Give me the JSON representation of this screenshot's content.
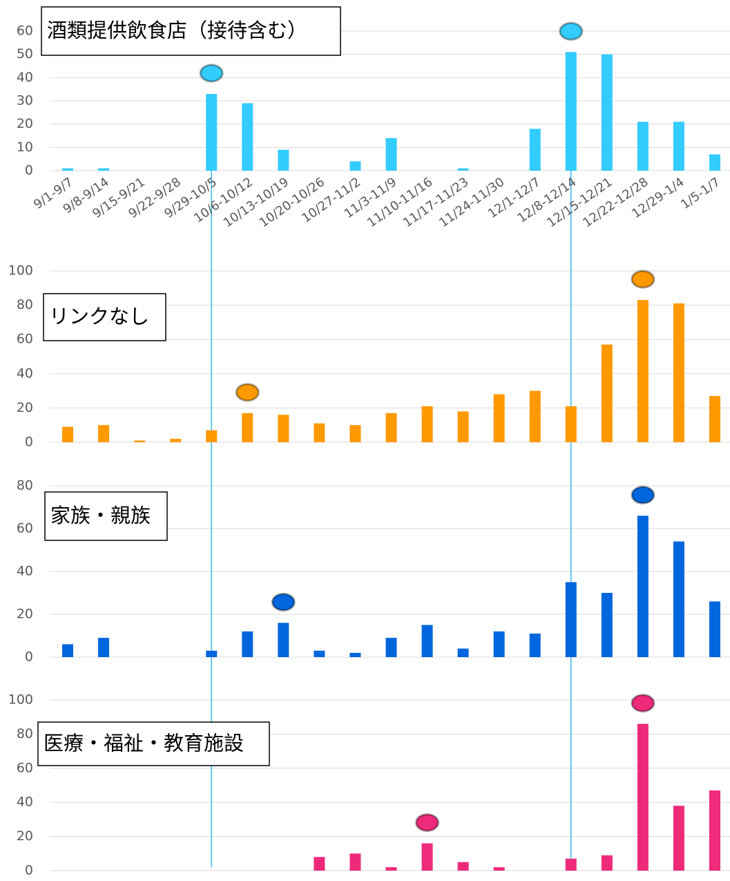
{
  "chart_data": [
    {
      "type": "bar",
      "title": "酒類提供飲食店（接待含む）",
      "categories": [
        "9/1-9/7",
        "9/8-9/14",
        "9/15-9/21",
        "9/22-9/28",
        "9/29-10/5",
        "10/6-10/12",
        "10/13-10/19",
        "10/20-10/26",
        "10/27-11/2",
        "11/3-11/9",
        "11/10-11/16",
        "11/17-11/23",
        "11/24-11/30",
        "12/1-12/7",
        "12/8-12/14",
        "12/15-12/21",
        "12/22-12/28",
        "12/29-1/4",
        "1/5-1/7"
      ],
      "values": [
        1,
        1,
        0,
        0,
        33,
        29,
        9,
        0,
        4,
        14,
        0,
        1,
        0,
        18,
        51,
        50,
        21,
        21,
        7
      ],
      "color": "#33ccff",
      "ylim": [
        0,
        60
      ],
      "yticks": [
        0,
        10,
        20,
        30,
        40,
        50,
        60
      ],
      "grid": true,
      "highlights": [
        4,
        14
      ]
    },
    {
      "type": "bar",
      "title": "リンクなし",
      "values": [
        9,
        10,
        1,
        2,
        7,
        17,
        16,
        11,
        10,
        17,
        21,
        18,
        28,
        30,
        21,
        57,
        83,
        81,
        27
      ],
      "color": "#ff9900",
      "ylim": [
        0,
        100
      ],
      "yticks": [
        0,
        20,
        40,
        60,
        80,
        100
      ],
      "grid": true,
      "highlights": [
        5,
        16
      ]
    },
    {
      "type": "bar",
      "title": "家族・親族",
      "values": [
        6,
        9,
        0,
        0,
        3,
        12,
        16,
        3,
        2,
        9,
        15,
        4,
        12,
        11,
        35,
        30,
        66,
        54,
        26
      ],
      "color": "#0066dd",
      "ylim": [
        0,
        80
      ],
      "yticks": [
        0,
        20,
        40,
        60,
        80
      ],
      "grid": true,
      "highlights": [
        6,
        16
      ]
    },
    {
      "type": "bar",
      "title": "医療・福祉・教育施設",
      "values": [
        0,
        0,
        0,
        0,
        0,
        0,
        0,
        8,
        10,
        2,
        16,
        5,
        2,
        0,
        7,
        9,
        86,
        38,
        47
      ],
      "color": "#ee2a7b",
      "ylim": [
        0,
        100
      ],
      "yticks": [
        0,
        20,
        40,
        60,
        80,
        100
      ],
      "grid": true,
      "highlights": [
        10,
        16
      ]
    }
  ]
}
